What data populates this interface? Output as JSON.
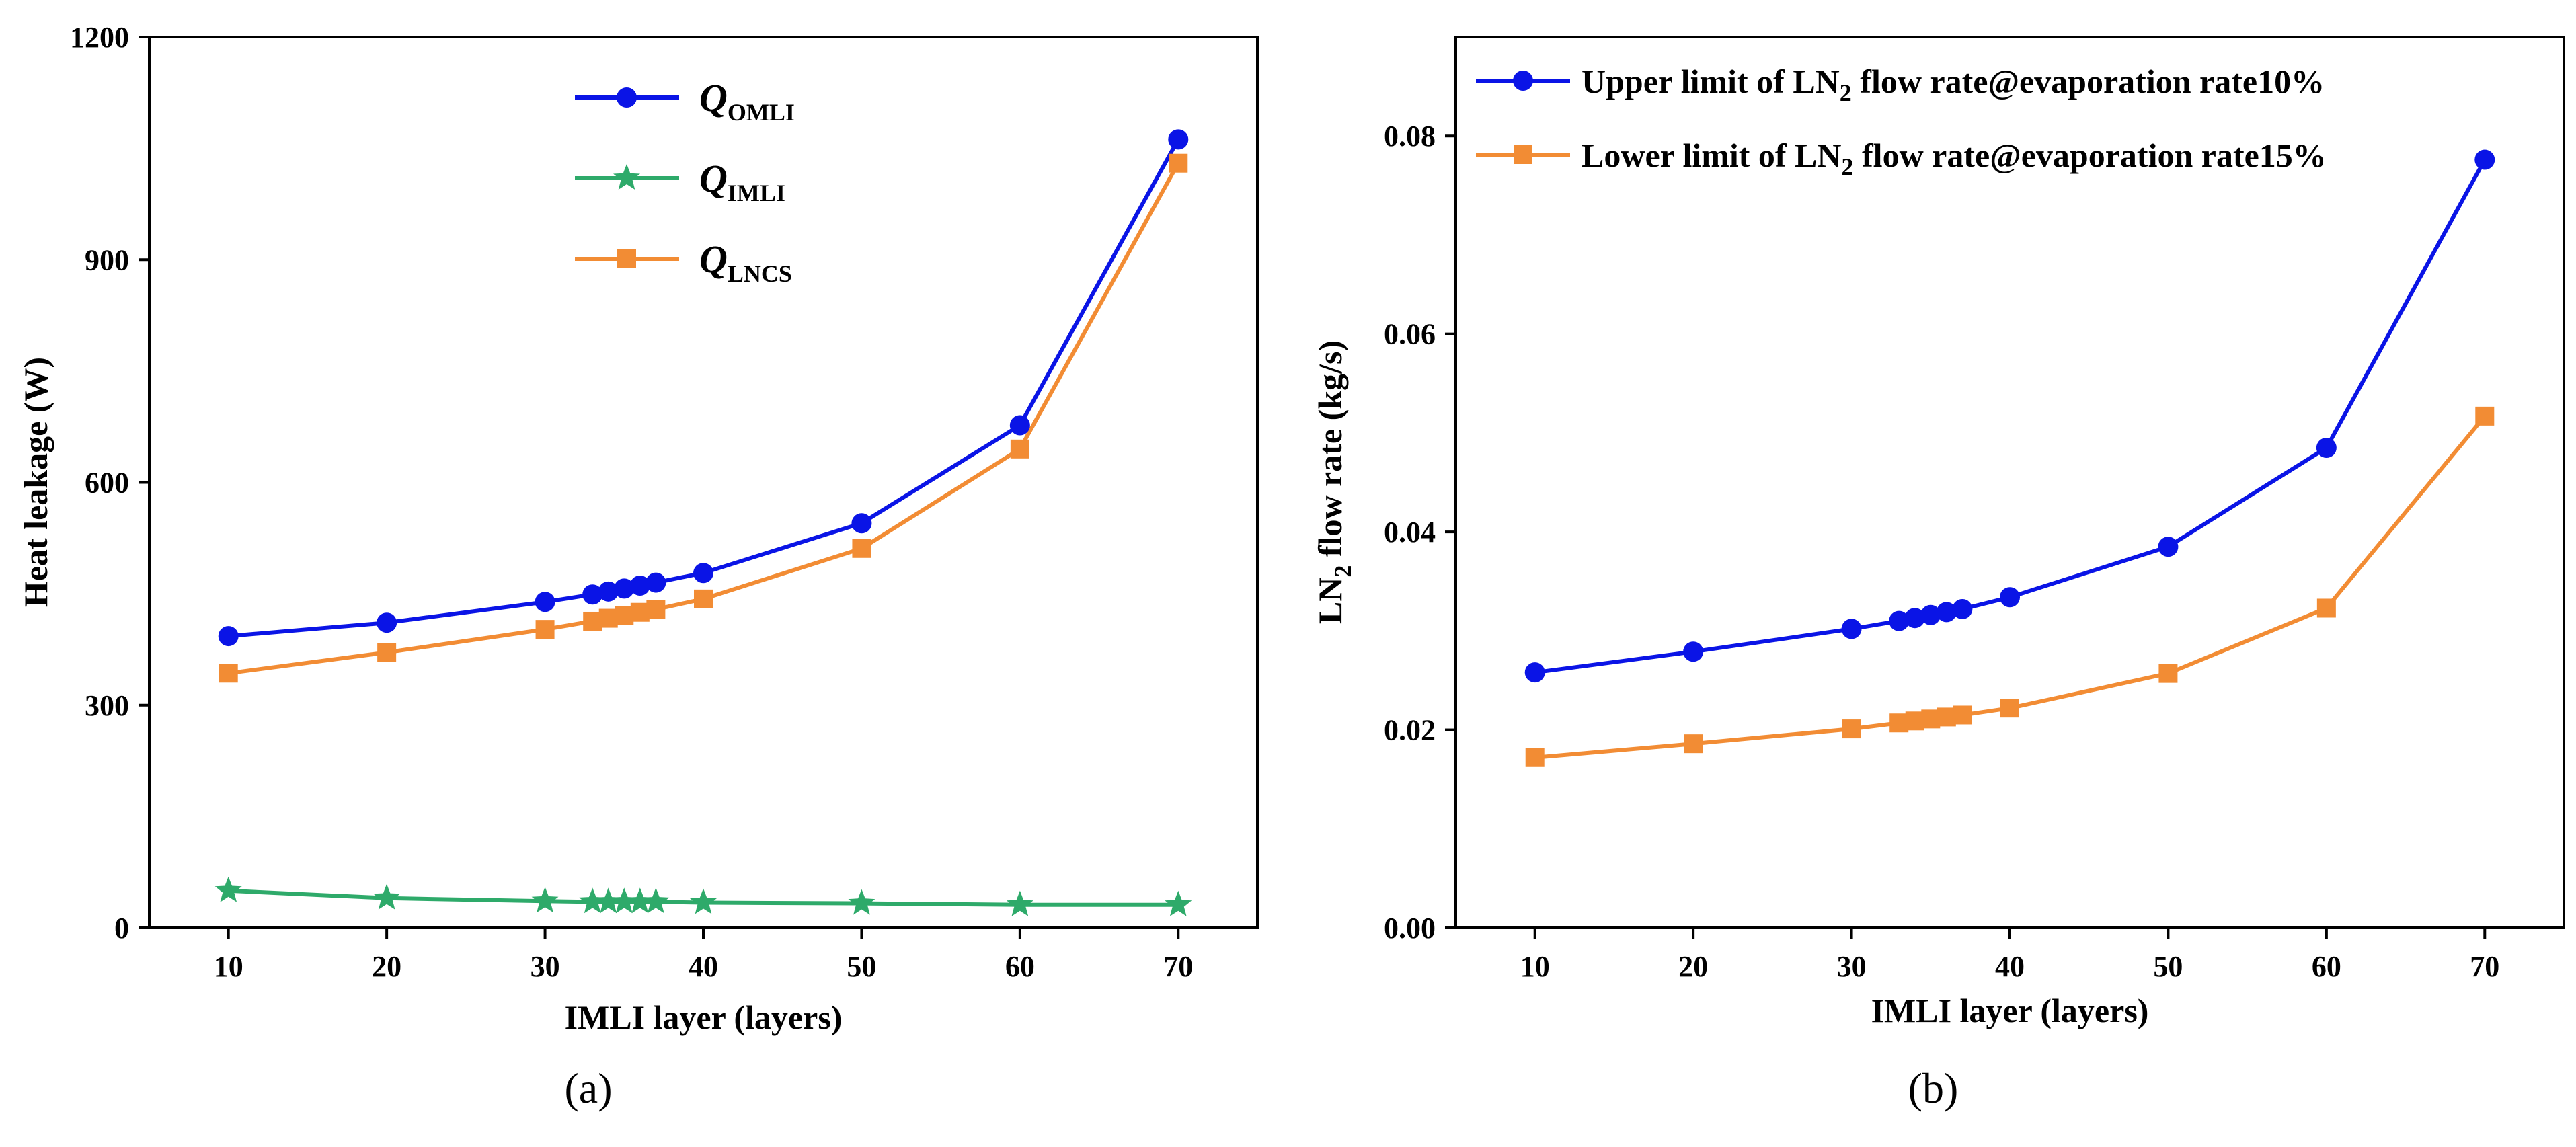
{
  "chart_data": [
    {
      "type": "line",
      "panel_label": "(a)",
      "xlabel": "IMLI layer (layers)",
      "ylabel": "Heat leakage (W)",
      "xlim": [
        5,
        75
      ],
      "ylim": [
        0,
        1200
      ],
      "x_ticks": [
        "10",
        "20",
        "30",
        "40",
        "50",
        "60",
        "70"
      ],
      "y_ticks": [
        "0",
        "300",
        "600",
        "900",
        "1200"
      ],
      "legend_position": "top-center",
      "x": [
        10,
        20,
        30,
        33,
        34,
        35,
        36,
        37,
        40,
        50,
        60,
        70
      ],
      "series": [
        {
          "name": "Q_OMLI",
          "legend_main": "Q",
          "legend_sub": "OMLI",
          "color": "#0a14e6",
          "marker": "circle",
          "values": [
            393,
            411,
            439,
            449,
            453,
            457,
            461,
            465,
            478,
            545,
            677,
            1062
          ]
        },
        {
          "name": "Q_IMLI",
          "legend_main": "Q",
          "legend_sub": "IMLI",
          "color": "#2eaa6a",
          "marker": "star",
          "values": [
            50,
            40,
            36,
            35,
            35,
            35,
            35,
            35,
            34,
            33,
            31,
            31
          ]
        },
        {
          "name": "Q_LNCS",
          "legend_main": "Q",
          "legend_sub": "LNCS",
          "color": "#f28c34",
          "marker": "square",
          "values": [
            343,
            371,
            402,
            413,
            417,
            421,
            425,
            429,
            443,
            511,
            645,
            1030
          ]
        }
      ]
    },
    {
      "type": "line",
      "panel_label": "(b)",
      "xlabel": "IMLI layer (layers)",
      "ylabel_main": "LN",
      "ylabel_sub": "2",
      "ylabel_rest": " flow rate (kg/s)",
      "xlim": [
        5,
        75
      ],
      "ylim": [
        0,
        0.09
      ],
      "x_ticks": [
        "10",
        "20",
        "30",
        "40",
        "50",
        "60",
        "70"
      ],
      "y_ticks": [
        "0.00",
        "0.02",
        "0.04",
        "0.06",
        "0.08"
      ],
      "legend_position": "top-left",
      "x": [
        10,
        20,
        30,
        33,
        34,
        35,
        36,
        37,
        40,
        50,
        60,
        70
      ],
      "series": [
        {
          "name": "Upper limit of LN2 flow rate@evaporation rate10%",
          "legend_pre": "Upper limit of LN",
          "legend_sub": "2",
          "legend_post": " flow rate@evaporation rate10%",
          "color": "#0a14e6",
          "marker": "circle",
          "values": [
            0.0258,
            0.0279,
            0.0302,
            0.031,
            0.0313,
            0.0316,
            0.0319,
            0.0322,
            0.0334,
            0.0385,
            0.0485,
            0.0776
          ]
        },
        {
          "name": "Lower limit of LN2 flow rate@evaporation rate15%",
          "legend_pre": "Lower limit of LN",
          "legend_sub": "2",
          "legend_post": " flow rate@evaporation rate15%",
          "color": "#f28c34",
          "marker": "square",
          "values": [
            0.0172,
            0.0186,
            0.0201,
            0.0207,
            0.0209,
            0.0211,
            0.0213,
            0.0215,
            0.0222,
            0.0257,
            0.0323,
            0.0517
          ]
        }
      ]
    }
  ]
}
